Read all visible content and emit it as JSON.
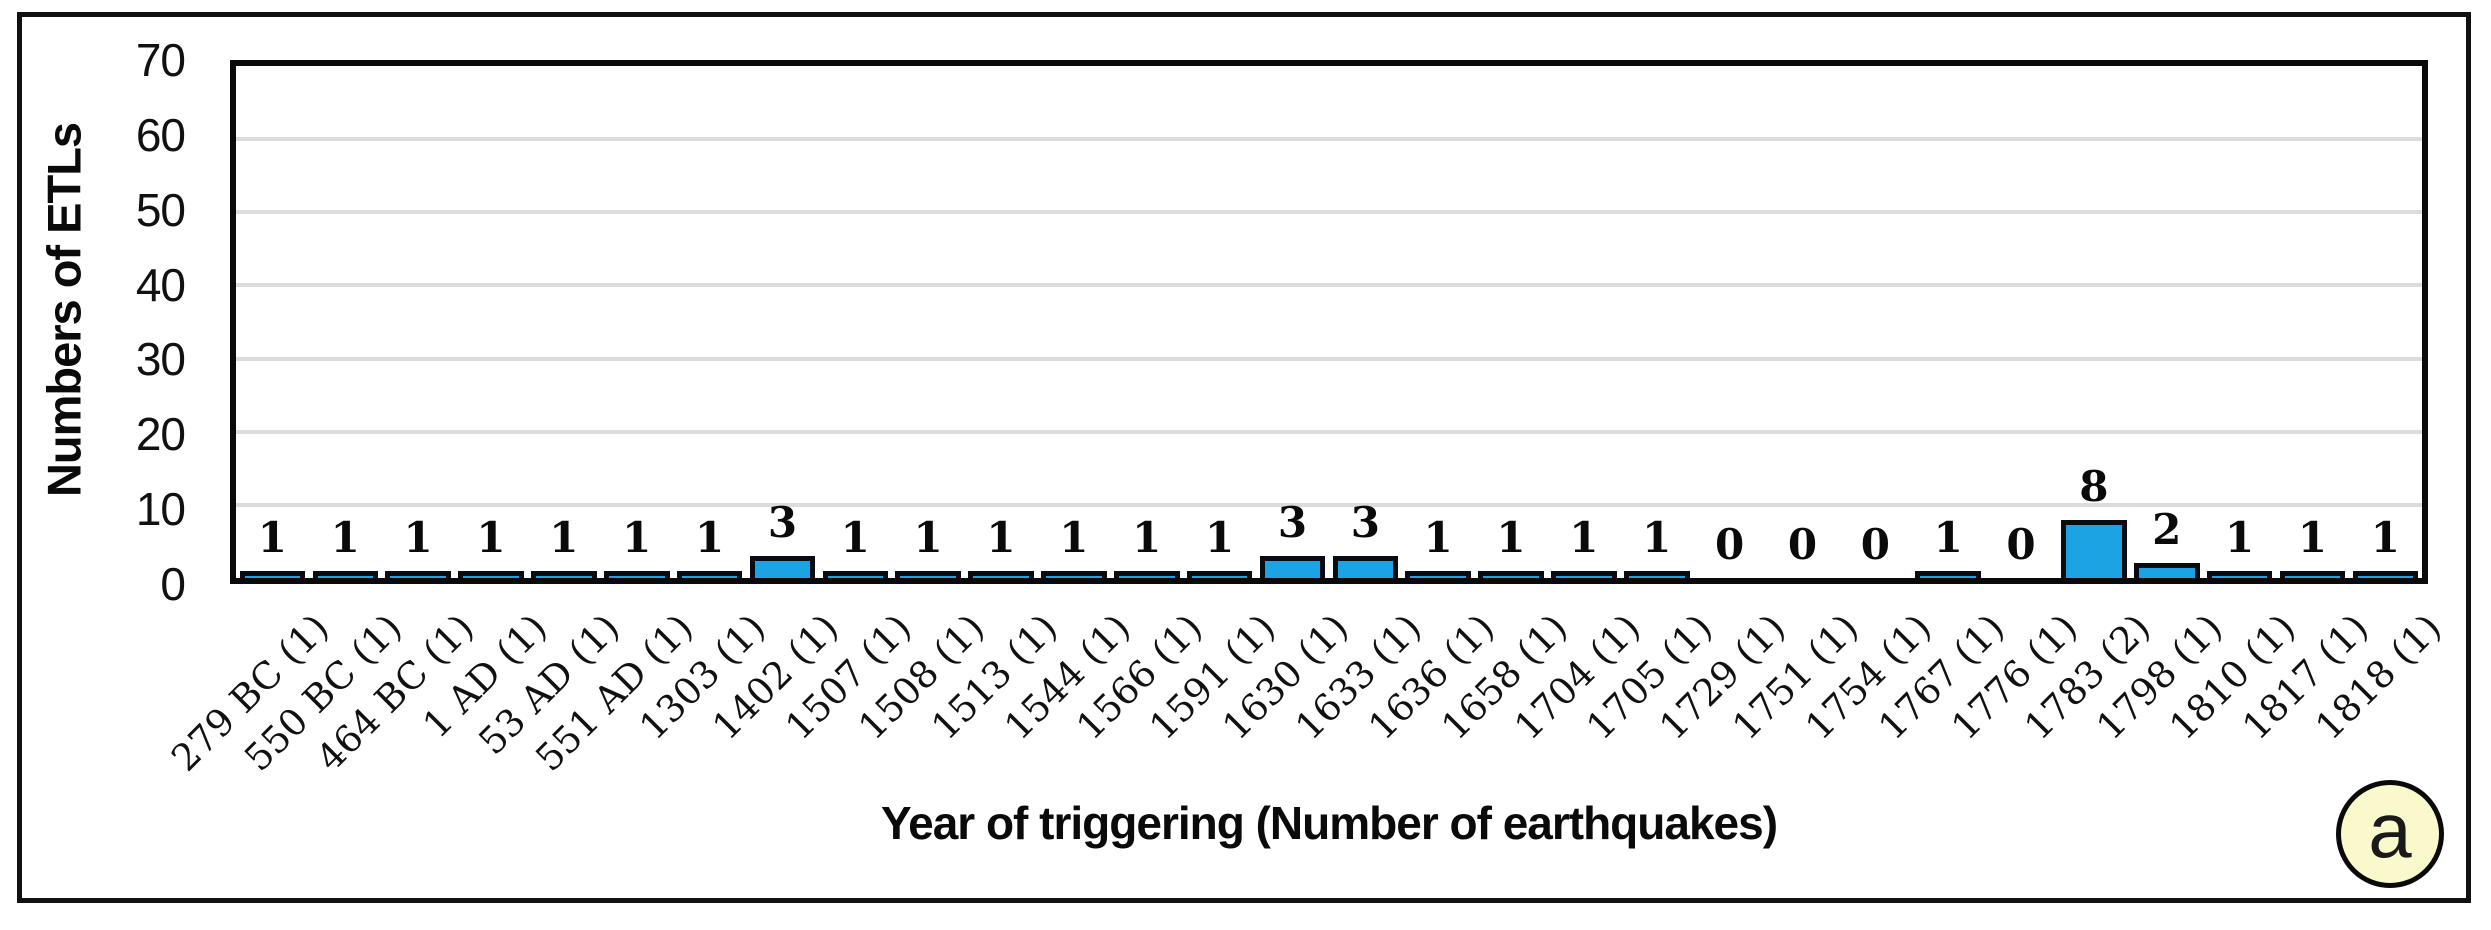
{
  "figure": {
    "panel_label": "a"
  },
  "chart_data": {
    "type": "bar",
    "title": "",
    "xlabel": "Year of triggering (Number of earthquakes)",
    "ylabel": "Numbers of ETLs",
    "ylim": [
      0,
      70
    ],
    "yticks": [
      0,
      10,
      20,
      30,
      40,
      50,
      60,
      70
    ],
    "grid": true,
    "legend": "none",
    "categories": [
      "279 BC (1)",
      "550 BC (1)",
      "464 BC (1)",
      "1 AD (1)",
      "53 AD (1)",
      "551 AD (1)",
      "1303 (1)",
      "1402 (1)",
      "1507 (1)",
      "1508 (1)",
      "1513 (1)",
      "1544 (1)",
      "1566 (1)",
      "1591 (1)",
      "1630 (1)",
      "1633 (1)",
      "1636 (1)",
      "1658 (1)",
      "1704 (1)",
      "1705 (1)",
      "1729 (1)",
      "1751 (1)",
      "1754 (1)",
      "1767 (1)",
      "1776 (1)",
      "1783 (2)",
      "1798 (1)",
      "1810 (1)",
      "1817 (1)",
      "1818 (1)"
    ],
    "values": [
      1,
      1,
      1,
      1,
      1,
      1,
      1,
      3,
      1,
      1,
      1,
      1,
      1,
      1,
      3,
      3,
      1,
      1,
      1,
      1,
      0,
      0,
      0,
      1,
      0,
      8,
      2,
      1,
      1,
      1
    ],
    "colors": {
      "bar_fill": "#1BA3E3",
      "bar_border": "#060c12",
      "gridline": "#dcdcdc",
      "axis": "#0a0a0a",
      "badge_fill": "#FAF9CB"
    }
  }
}
